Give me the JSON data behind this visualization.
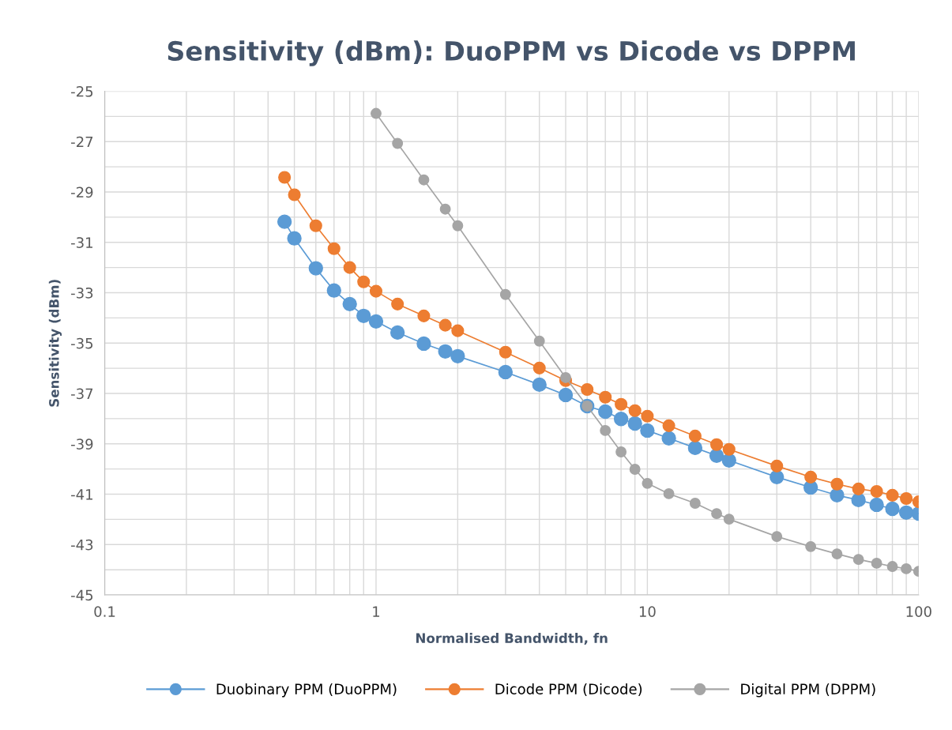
{
  "chart_data": {
    "type": "line",
    "title": "Sensitivity (dBm): DuoPPM vs Dicode vs DPPM",
    "xlabel": "Normalised Bandwidth, fn",
    "ylabel": "Sensitivity (dBm)",
    "log": "x",
    "grid": true,
    "legend": "bottom",
    "marker": "circle",
    "line_style": "solid",
    "xlim": [
      0.1,
      100
    ],
    "xticks": [
      0.1,
      {
        "value": 0.2,
        "label": null
      },
      {
        "value": 0.3,
        "label": null
      },
      {
        "value": 0.4,
        "label": null
      },
      {
        "value": 0.5,
        "label": null
      },
      {
        "value": 0.6,
        "label": null
      },
      {
        "value": 0.7,
        "label": null
      },
      {
        "value": 0.8,
        "label": null
      },
      {
        "value": 0.9,
        "label": null
      },
      1,
      {
        "value": 2,
        "label": null
      },
      {
        "value": 3,
        "label": null
      },
      {
        "value": 4,
        "label": null
      },
      {
        "value": 5,
        "label": null
      },
      {
        "value": 6,
        "label": null
      },
      {
        "value": 7,
        "label": null
      },
      {
        "value": 8,
        "label": null
      },
      {
        "value": 9,
        "label": null
      },
      10,
      {
        "value": 20,
        "label": null
      },
      {
        "value": 30,
        "label": null
      },
      {
        "value": 40,
        "label": null
      },
      {
        "value": 50,
        "label": null
      },
      {
        "value": 60,
        "label": null
      },
      {
        "value": 70,
        "label": null
      },
      {
        "value": 80,
        "label": null
      },
      {
        "value": 90,
        "label": null
      },
      100
    ],
    "ylim": [
      -45,
      -25
    ],
    "yticks": [
      -45,
      {
        "value": -44,
        "label": null
      },
      -43,
      {
        "value": -42,
        "label": null
      },
      -41,
      {
        "value": -40,
        "label": null
      },
      -39,
      {
        "value": -38,
        "label": null
      },
      -37,
      {
        "value": -36,
        "label": null
      },
      -35,
      {
        "value": -34,
        "label": null
      },
      -33,
      {
        "value": -32,
        "label": null
      },
      -31,
      {
        "value": -30,
        "label": null
      },
      -29,
      {
        "value": -28,
        "label": null
      },
      -27,
      {
        "value": -26,
        "label": null
      },
      -25
    ],
    "series": [
      {
        "name": "Duobinary PPM (DuoPPM)",
        "color": "#5b9bd5",
        "x": [
          0.46,
          0.5,
          0.6,
          0.7,
          0.8,
          0.9,
          1,
          1.2,
          1.5,
          1.8,
          2,
          3,
          4,
          5,
          6,
          7,
          8,
          9,
          10,
          12,
          15,
          18,
          20,
          30,
          40,
          50,
          60,
          70,
          80,
          90,
          100
        ],
        "values": [
          -30.18,
          -30.84,
          -32.03,
          -32.91,
          -33.45,
          -33.92,
          -34.14,
          -34.58,
          -35.02,
          -35.33,
          -35.52,
          -36.15,
          -36.65,
          -37.06,
          -37.5,
          -37.72,
          -38.01,
          -38.19,
          -38.47,
          -38.78,
          -39.16,
          -39.47,
          -39.66,
          -40.32,
          -40.73,
          -41.04,
          -41.23,
          -41.42,
          -41.58,
          -41.73,
          -41.77
        ]
      },
      {
        "name": "Dicode PPM (Dicode)",
        "color": "#ed7d31",
        "x": [
          0.46,
          0.5,
          0.6,
          0.7,
          0.8,
          0.9,
          1,
          1.2,
          1.5,
          1.8,
          2,
          3,
          4,
          5,
          6,
          7,
          8,
          9,
          10,
          12,
          15,
          18,
          20,
          30,
          40,
          50,
          60,
          70,
          80,
          90,
          100
        ],
        "values": [
          -28.42,
          -29.11,
          -30.34,
          -31.25,
          -32.0,
          -32.57,
          -32.94,
          -33.45,
          -33.92,
          -34.29,
          -34.51,
          -35.36,
          -35.99,
          -36.49,
          -36.84,
          -37.15,
          -37.43,
          -37.68,
          -37.9,
          -38.28,
          -38.69,
          -39.03,
          -39.22,
          -39.88,
          -40.32,
          -40.6,
          -40.79,
          -40.89,
          -41.04,
          -41.17,
          -41.3
        ]
      },
      {
        "name": "Digital PPM (DPPM)",
        "color": "#a5a5a5",
        "x": [
          1,
          1.2,
          1.5,
          1.8,
          2,
          3,
          4,
          5,
          6,
          7,
          8,
          9,
          10,
          12,
          15,
          18,
          20,
          30,
          40,
          50,
          60,
          70,
          80,
          90,
          100
        ],
        "values": [
          -25.88,
          -27.07,
          -28.52,
          -29.68,
          -30.34,
          -33.07,
          -34.92,
          -36.37,
          -37.5,
          -38.47,
          -39.32,
          -40.01,
          -40.57,
          -40.98,
          -41.36,
          -41.77,
          -41.99,
          -42.68,
          -43.08,
          -43.37,
          -43.59,
          -43.74,
          -43.87,
          -43.96,
          -44.06
        ]
      }
    ]
  }
}
